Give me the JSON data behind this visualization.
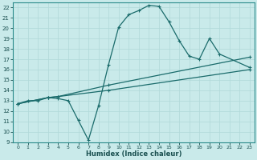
{
  "bg_color": "#c9eaea",
  "grid_color": "#b0d8d8",
  "line_color": "#1a6b6b",
  "xlabel": "Humidex (Indice chaleur)",
  "xlim_min": -0.5,
  "xlim_max": 23.5,
  "ylim_min": 9,
  "ylim_max": 22.5,
  "curve1_x": [
    0,
    1,
    2,
    3,
    4,
    5,
    6,
    7,
    8,
    9,
    10,
    11,
    12,
    13,
    14,
    15,
    16,
    17,
    18,
    19,
    20,
    23
  ],
  "curve1_y": [
    12.7,
    13.0,
    13.0,
    13.3,
    13.2,
    13.0,
    11.1,
    9.2,
    12.5,
    16.5,
    20.1,
    21.3,
    21.7,
    22.2,
    22.1,
    20.6,
    18.8,
    17.3,
    17.0,
    19.0,
    17.5,
    16.2
  ],
  "curve2_x": [
    0,
    3,
    4,
    9,
    23
  ],
  "curve2_y": [
    12.7,
    13.3,
    13.4,
    14.5,
    17.2
  ],
  "curve3_x": [
    0,
    3,
    4,
    9,
    23
  ],
  "curve3_y": [
    12.7,
    13.3,
    13.4,
    14.0,
    16.0
  ]
}
